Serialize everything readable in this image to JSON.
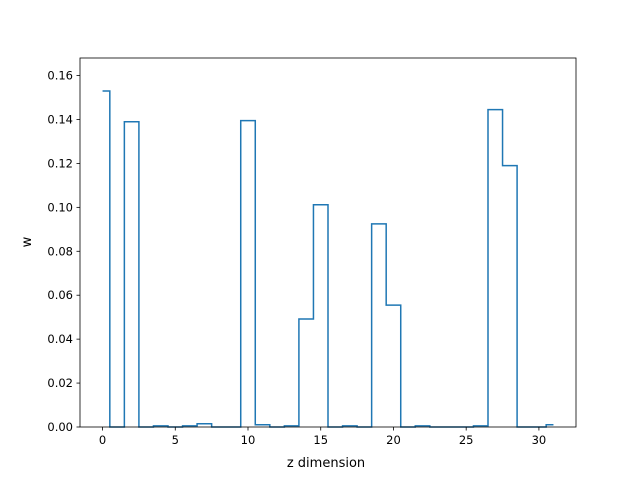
{
  "chart_data": {
    "type": "line",
    "style": "step",
    "title": "",
    "xlabel": "z dimension",
    "ylabel": "w",
    "xlim": [
      -1.55,
      32.55
    ],
    "ylim": [
      0.0,
      0.168
    ],
    "xticks": [
      0,
      5,
      10,
      15,
      20,
      25,
      30
    ],
    "yticks": [
      0.0,
      0.02,
      0.04,
      0.06,
      0.08,
      0.1,
      0.12,
      0.14,
      0.16
    ],
    "xtick_labels": [
      "0",
      "5",
      "10",
      "15",
      "20",
      "25",
      "30"
    ],
    "ytick_labels": [
      "0.00",
      "0.02",
      "0.04",
      "0.06",
      "0.08",
      "0.10",
      "0.12",
      "0.14",
      "0.16"
    ],
    "grid": false,
    "color": "#1f77b4",
    "x": [
      0,
      1,
      2,
      3,
      4,
      5,
      6,
      7,
      8,
      9,
      10,
      11,
      12,
      13,
      14,
      15,
      16,
      17,
      18,
      19,
      20,
      21,
      22,
      23,
      24,
      25,
      26,
      27,
      28,
      29,
      30,
      31
    ],
    "values": [
      0.153,
      0.0,
      0.139,
      0.0,
      0.0005,
      0.0,
      0.0005,
      0.0015,
      0.0,
      0.0,
      0.1395,
      0.001,
      0.0,
      0.0005,
      0.0492,
      0.1012,
      0.0,
      0.0005,
      0.0,
      0.0925,
      0.0555,
      0.0,
      0.0005,
      0.0,
      0.0,
      0.0,
      0.0005,
      0.1445,
      0.119,
      0.0,
      0.0,
      0.001
    ]
  }
}
